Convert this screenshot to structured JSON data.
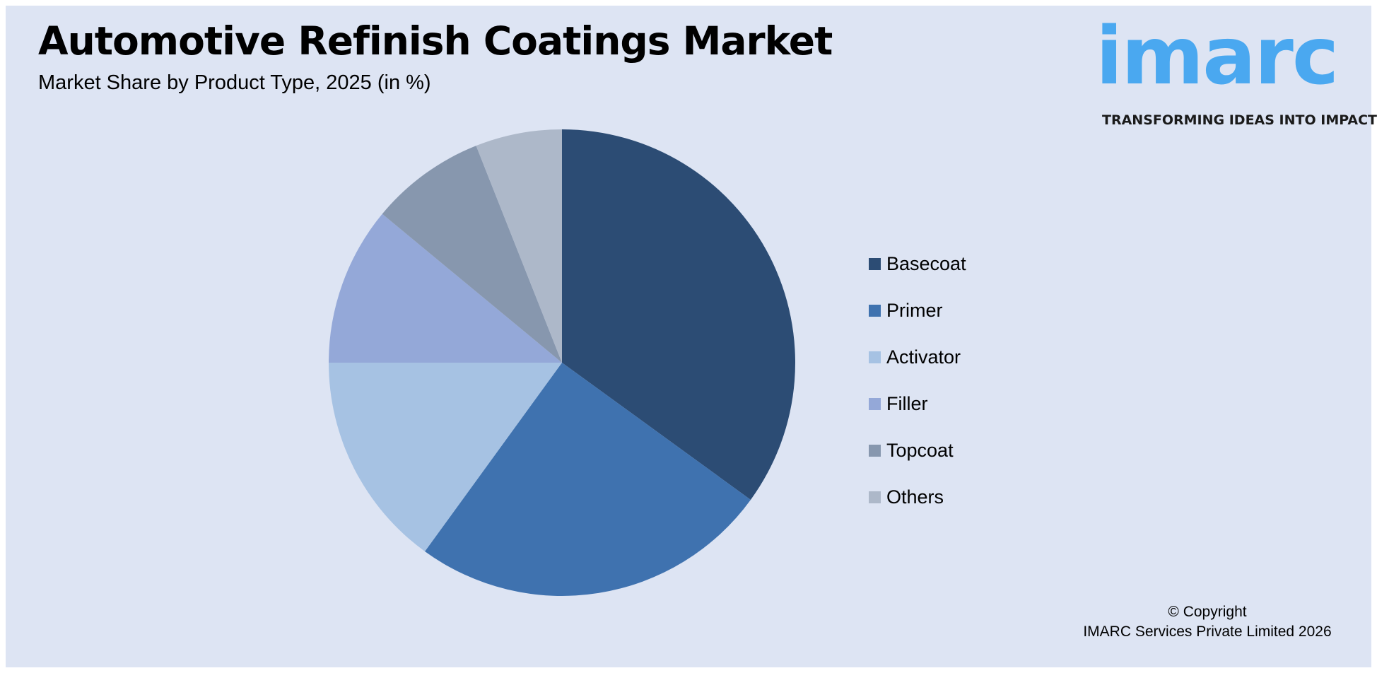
{
  "chart_data": {
    "type": "pie",
    "title": "Automotive Refinish Coatings Market",
    "subtitle": "Market Share by Product Type, 2025 (in %)",
    "legend_position": "right",
    "start_angle": "12 o'clock, clockwise",
    "slices": [
      {
        "label": "Basecoat",
        "value": 35,
        "color": "#2c4c74"
      },
      {
        "label": "Primer",
        "value": 25,
        "color": "#3f72af"
      },
      {
        "label": "Activator",
        "value": 15,
        "color": "#a6c2e3"
      },
      {
        "label": "Filler",
        "value": 11,
        "color": "#94a8d8"
      },
      {
        "label": "Topcoat",
        "value": 8,
        "color": "#8797ae"
      },
      {
        "label": "Others",
        "value": 6,
        "color": "#adb8c9"
      }
    ]
  },
  "logo": {
    "word": "imarc",
    "tagline": "TRANSFORMING IDEAS INTO IMPACT",
    "color": "#4aa8f0"
  },
  "copyright": {
    "line1": "© Copyright",
    "line2": "IMARC Services Private Limited 2026"
  },
  "background_color": "#dde4f3"
}
